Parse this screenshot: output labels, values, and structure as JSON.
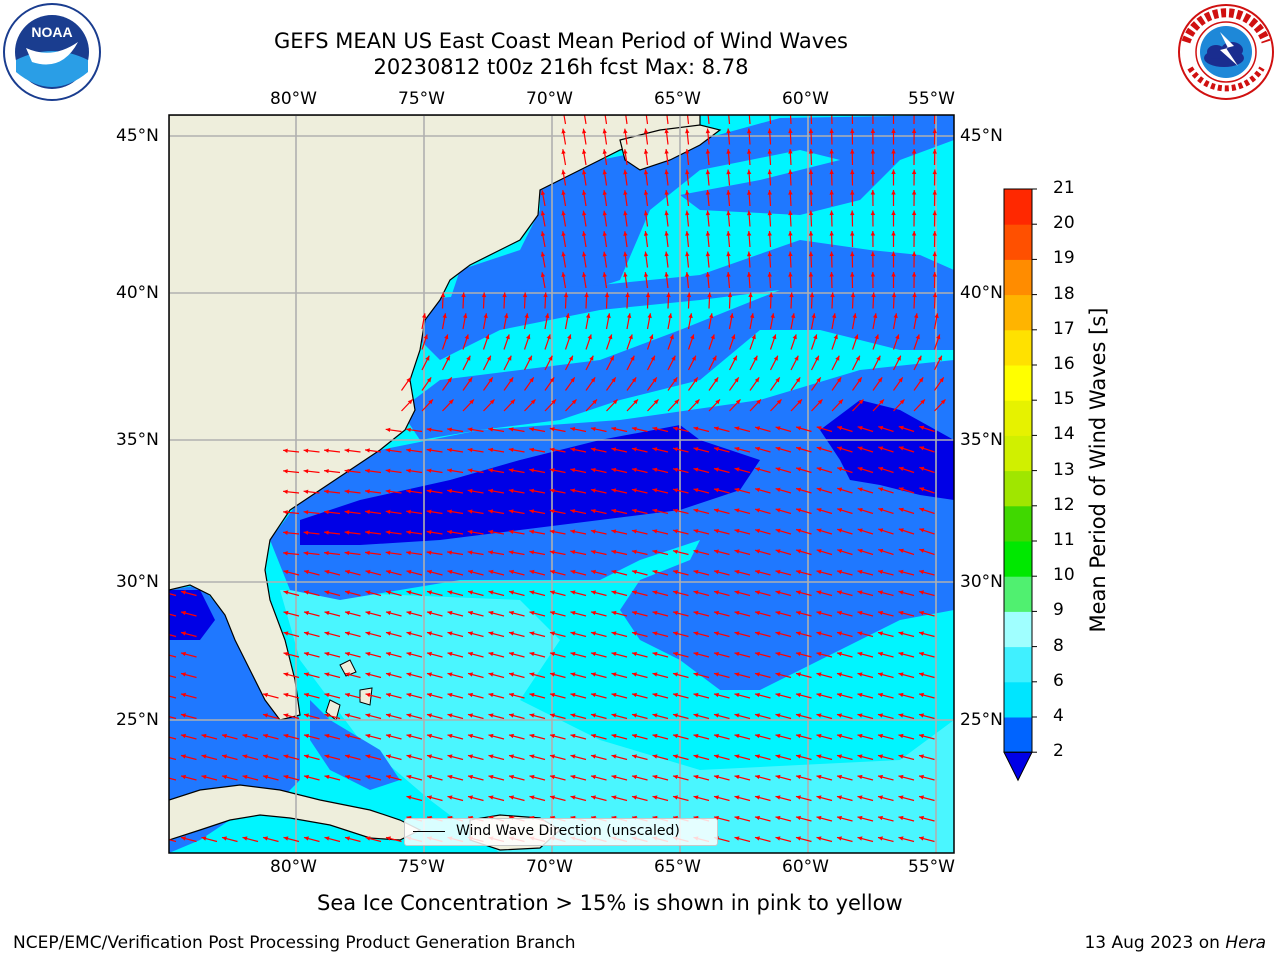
{
  "header": {
    "title_line1": "GEFS MEAN US East Coast Mean Period of Wind Waves",
    "title_line2": "20230812 t00z 216h fcst   Max: 8.78"
  },
  "logos": {
    "noaa": {
      "text": "NOAA",
      "ring_text": "NATIONAL OCEANIC AND ATMOSPHERIC ADMINISTRATION · U.S. DEPARTMENT OF COMMERCE"
    },
    "nws": {
      "ring_text": "NATIONAL WEATHER SERVICE"
    }
  },
  "map": {
    "lon_labels": [
      "80°W",
      "75°W",
      "70°W",
      "65°W",
      "60°W",
      "55°W"
    ],
    "lat_labels": [
      "45°N",
      "40°N",
      "35°N",
      "30°N",
      "25°N"
    ],
    "legend_label": "Wind Wave Direction (unscaled)",
    "colors": {
      "land": "#eeeedc",
      "ocean_2_4": "#1f78ff",
      "ocean_4_6": "#00f5ff",
      "ocean_6_8": "#4af6ff",
      "ocean_lt_2": "#0000e6",
      "arrows": "#ff0000",
      "grid": "#b0b0b0"
    }
  },
  "colorbar": {
    "label": "Mean Period of Wind Waves [s]",
    "ticks": [
      "21",
      "20",
      "19",
      "18",
      "17",
      "16",
      "15",
      "14",
      "13",
      "12",
      "11",
      "10",
      "9",
      "8",
      "6",
      "4",
      "2"
    ],
    "levels": [
      2,
      4,
      6,
      8,
      9,
      10,
      11,
      12,
      13,
      14,
      15,
      16,
      17,
      18,
      19,
      20,
      21
    ],
    "colors": [
      "#0064ff",
      "#00e5ff",
      "#40f0ff",
      "#a0ffff",
      "#50f070",
      "#00e800",
      "#40d800",
      "#a0e600",
      "#d0f000",
      "#e6f200",
      "#ffff00",
      "#ffe100",
      "#ffb400",
      "#ff8c00",
      "#ff5000",
      "#ff2800",
      "#ff0000"
    ],
    "extend_color": "#0000e6"
  },
  "footer": {
    "note": "Sea Ice Concentration > 15% is shown in pink to yellow",
    "left": "NCEP/EMC/Verification Post Processing Product Generation Branch",
    "right_date": "13 Aug 2023 on ",
    "right_host": "Hera"
  }
}
